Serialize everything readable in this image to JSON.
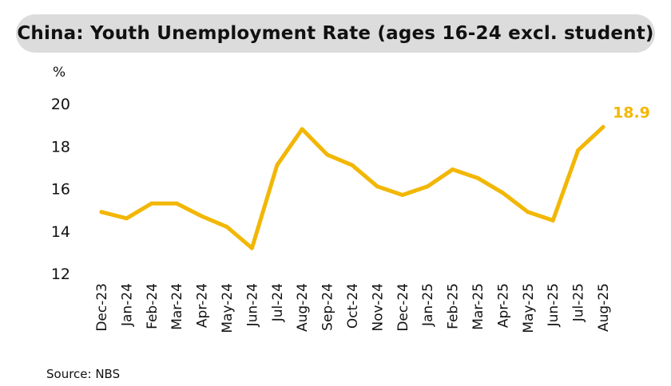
{
  "title": "China: Youth Unemployment Rate (ages 16-24 excl. student)",
  "source": "Source: NBS",
  "chart_data": {
    "type": "line",
    "title": "China: Youth Unemployment Rate (ages 16-24 excl. student)",
    "ylabel": "%",
    "xlabel": "",
    "ylim": [
      12,
      20
    ],
    "yticks": [
      12,
      14,
      16,
      18,
      20
    ],
    "grid": false,
    "legend": "none",
    "color": "#F2B705",
    "categories": [
      "Dec-23",
      "Jan-24",
      "Feb-24",
      "Mar-24",
      "Apr-24",
      "May-24",
      "Jun-24",
      "Jul-24",
      "Aug-24",
      "Sep-24",
      "Oct-24",
      "Nov-24",
      "Dec-24",
      "Jan-25",
      "Feb-25",
      "Mar-25",
      "Apr-25",
      "May-25",
      "Jun-25",
      "Jul-25",
      "Aug-25"
    ],
    "values": [
      14.9,
      14.6,
      15.3,
      15.3,
      14.7,
      14.2,
      13.2,
      17.1,
      18.8,
      17.6,
      17.1,
      16.1,
      15.7,
      16.1,
      16.9,
      16.5,
      15.8,
      14.9,
      14.5,
      17.8,
      18.9
    ],
    "annotations": [
      {
        "category": "Aug-25",
        "text": "18.9"
      }
    ]
  }
}
